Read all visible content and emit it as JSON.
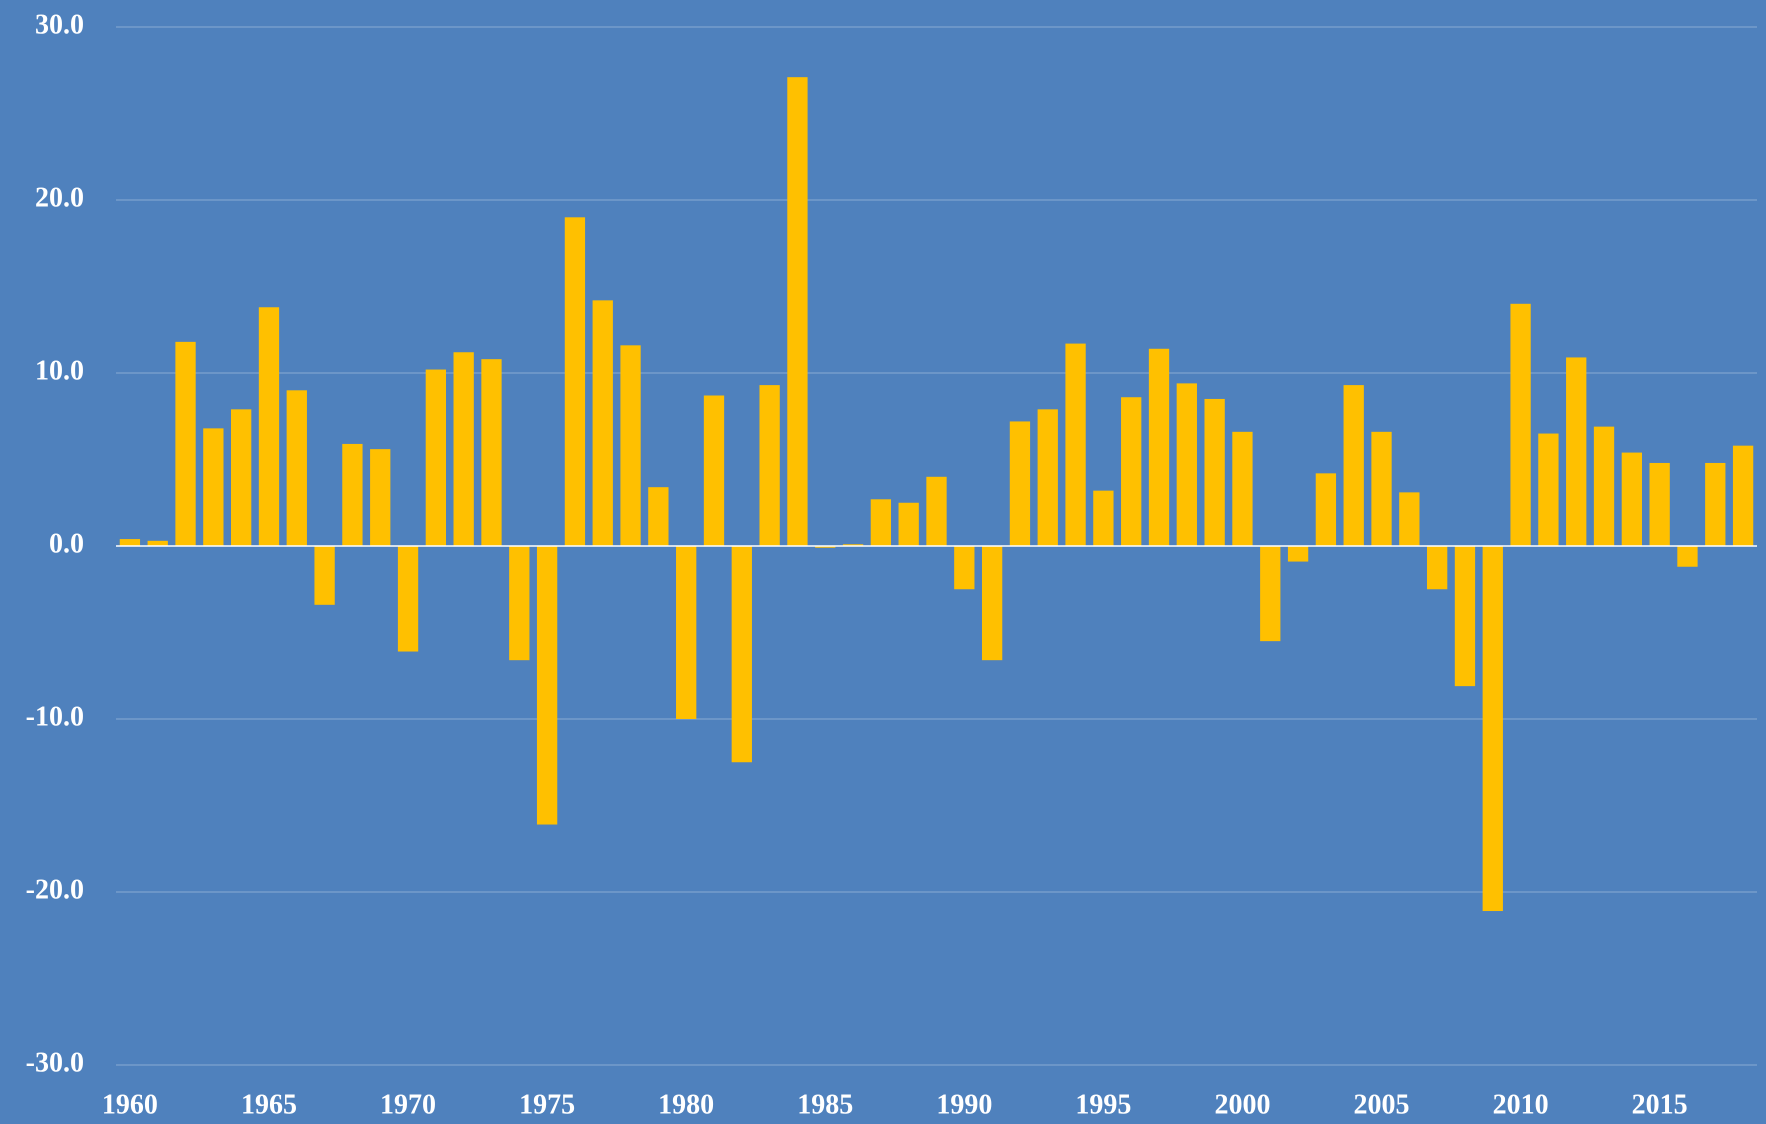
{
  "chart_data": {
    "type": "bar",
    "categories": [
      "1960",
      null,
      null,
      null,
      null,
      "1965",
      null,
      null,
      null,
      null,
      "1970",
      null,
      null,
      null,
      null,
      "1975",
      null,
      null,
      null,
      null,
      "1980",
      null,
      null,
      null,
      null,
      "1985",
      null,
      null,
      null,
      null,
      "1990",
      null,
      null,
      null,
      null,
      "1995",
      null,
      null,
      null,
      null,
      "2000",
      null,
      null,
      null,
      null,
      "2005",
      null,
      null,
      null,
      null,
      "2010",
      null,
      null,
      null,
      null,
      "2015",
      null,
      null,
      null
    ],
    "values": [
      0.4,
      0.3,
      11.8,
      6.8,
      7.9,
      13.8,
      9.0,
      -3.4,
      5.9,
      5.6,
      -6.1,
      10.2,
      11.2,
      10.8,
      -6.6,
      -16.1,
      19.0,
      14.2,
      11.6,
      3.4,
      -10.0,
      8.7,
      -12.5,
      9.3,
      27.1,
      -0.1,
      0.1,
      2.7,
      2.5,
      4.0,
      -2.5,
      -6.6,
      7.2,
      7.9,
      11.7,
      3.2,
      8.6,
      11.4,
      9.4,
      8.5,
      6.6,
      -5.5,
      -0.9,
      4.2,
      9.3,
      6.6,
      3.1,
      -2.5,
      -8.1,
      -21.1,
      14.0,
      6.5,
      10.9,
      6.9,
      5.4,
      4.8,
      -1.2,
      4.8,
      5.8
    ],
    "color": "#ffc000",
    "ylim": [
      -30,
      30
    ],
    "yticks": [
      {
        "value": -30,
        "label": "-30.0"
      },
      {
        "value": -20,
        "label": "-20.0"
      },
      {
        "value": -10,
        "label": "-10.0"
      },
      {
        "value": 0,
        "label": "0.0"
      },
      {
        "value": 10,
        "label": "10.0"
      },
      {
        "value": 20,
        "label": "20.0"
      },
      {
        "value": 30,
        "label": "30.0"
      }
    ],
    "grid": true
  }
}
